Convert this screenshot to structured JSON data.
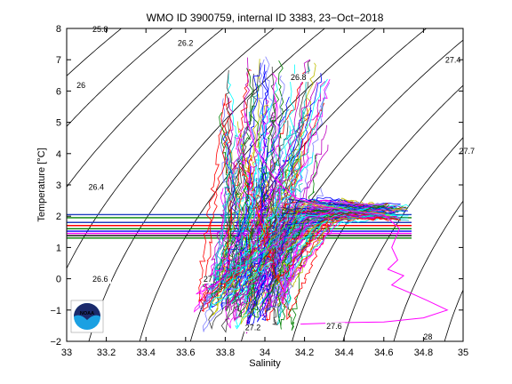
{
  "chart_data": {
    "type": "line",
    "title": "WMO ID 3900759, internal ID 3383, 23−Oct−2018",
    "xlabel": "Salinity",
    "ylabel": "Temperature [°C]",
    "xlim": [
      33,
      35
    ],
    "ylim": [
      -2,
      8
    ],
    "xticks": [
      33,
      33.2,
      33.4,
      33.6,
      33.8,
      34,
      34.2,
      34.4,
      34.6,
      34.8,
      35
    ],
    "xtick_labels": [
      "33",
      "33.2",
      "33.4",
      "33.6",
      "33.8",
      "34",
      "34.2",
      "34.4",
      "34.6",
      "34.8",
      "35"
    ],
    "yticks": [
      -2,
      -1,
      0,
      1,
      2,
      3,
      4,
      5,
      6,
      7,
      8
    ],
    "ytick_labels": [
      "−2",
      "−1",
      "0",
      "1",
      "2",
      "3",
      "4",
      "5",
      "6",
      "7",
      "8"
    ],
    "isopycnals": [
      {
        "label": "25.8",
        "sigma": 25.8,
        "label_at": [
          33.13,
          7.88
        ]
      },
      {
        "label": "26",
        "sigma": 26.0,
        "label_at": [
          33.05,
          6.1
        ]
      },
      {
        "label": "26.2",
        "sigma": 26.2,
        "label_at": [
          33.56,
          7.45
        ]
      },
      {
        "label": "26.4",
        "sigma": 26.4,
        "label_at": [
          33.11,
          2.85
        ]
      },
      {
        "label": "26.6",
        "sigma": 26.6,
        "label_at": [
          33.13,
          -0.1
        ]
      },
      {
        "label": "26.8",
        "sigma": 26.8,
        "label_at": [
          34.13,
          6.35
        ]
      },
      {
        "label": "27",
        "sigma": 27.0,
        "label_at": [
          33.69,
          -0.1
        ]
      },
      {
        "label": "27.2",
        "sigma": 27.2,
        "label_at": [
          33.9,
          -1.65
        ]
      },
      {
        "label": "27.4",
        "sigma": 27.4,
        "label_at": [
          34.91,
          6.9
        ]
      },
      {
        "label": "27.6",
        "sigma": 27.6,
        "label_at": [
          34.31,
          -1.6
        ]
      },
      {
        "label": "27.7",
        "sigma": 27.7,
        "label_at": [
          34.98,
          4.0
        ]
      },
      {
        "label": "28",
        "sigma": 28.0,
        "label_at": [
          34.8,
          -1.95
        ]
      }
    ],
    "horizontal_lines": [
      {
        "y": 2.05,
        "color": "#1f3fbf"
      },
      {
        "y": 1.95,
        "color": "#008000"
      },
      {
        "y": 1.8,
        "color": "#1f3fbf"
      },
      {
        "y": 1.7,
        "color": "#ff0000"
      },
      {
        "y": 1.6,
        "color": "#008000"
      },
      {
        "y": 1.52,
        "color": "#0000ff"
      },
      {
        "y": 1.45,
        "color": "#ff00ff"
      },
      {
        "y": 1.38,
        "color": "#000000"
      },
      {
        "y": 1.3,
        "color": "#008000"
      }
    ],
    "series_colors": [
      "#0000ff",
      "#008000",
      "#ff0000",
      "#00bfbf",
      "#bf00bf",
      "#bfbf00",
      "#404040",
      "#ff00ff",
      "#00ffff",
      "#7f7fff"
    ],
    "profile_count": 95,
    "highlight_profile": {
      "color": "#ff00ff",
      "points": [
        [
          33.9,
          5.3
        ],
        [
          33.95,
          4.2
        ],
        [
          34.05,
          3.2
        ],
        [
          34.15,
          2.6
        ],
        [
          34.3,
          2.3
        ],
        [
          34.45,
          2.15
        ],
        [
          34.6,
          2.05
        ],
        [
          34.68,
          1.6
        ],
        [
          34.64,
          1.0
        ],
        [
          34.67,
          0.6
        ],
        [
          34.62,
          0.3
        ],
        [
          34.7,
          0.1
        ],
        [
          34.64,
          -0.2
        ],
        [
          34.75,
          -0.5
        ],
        [
          34.82,
          -0.7
        ],
        [
          34.92,
          -1.0
        ],
        [
          34.8,
          -1.25
        ],
        [
          34.6,
          -1.38
        ],
        [
          34.4,
          -1.4
        ],
        [
          34.18,
          -1.45
        ]
      ]
    }
  },
  "logo": {
    "text": "NOAA",
    "colors": {
      "top": "#1b2a6b",
      "bottom": "#1ba0e2"
    }
  }
}
